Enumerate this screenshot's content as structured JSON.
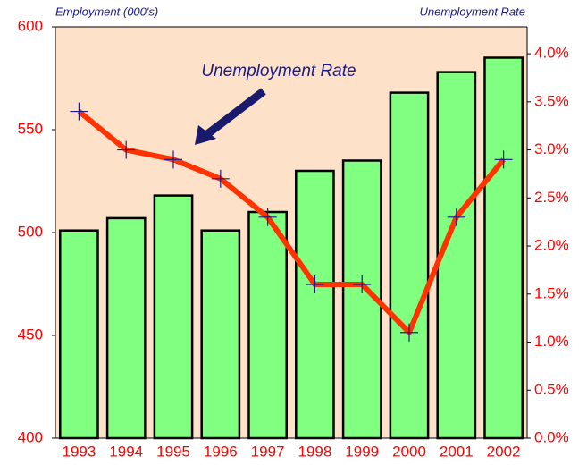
{
  "chart_data": {
    "type": "bar-line",
    "y_label": "Employment (000's)",
    "y2_label": "Unemployment Rate",
    "annotation": "Unemployment Rate",
    "categories": [
      "1993",
      "1994",
      "1995",
      "1996",
      "1997",
      "1998",
      "1999",
      "2000",
      "2001",
      "2002"
    ],
    "series": [
      {
        "type": "bar",
        "color": "#80ff80",
        "values": [
          501,
          507,
          518,
          501,
          510,
          530,
          535,
          568,
          578,
          585
        ]
      },
      {
        "type": "line",
        "axis": "y2",
        "color": "#ff3300",
        "marker_color": "#1a1a8c",
        "values": [
          3.4,
          3.0,
          2.9,
          2.7,
          2.3,
          1.6,
          1.6,
          1.1,
          2.3,
          2.9
        ]
      }
    ],
    "ylim": [
      400,
      600
    ],
    "yticks": [
      400,
      450,
      500,
      550,
      600
    ],
    "y2lim": [
      0,
      4.28
    ],
    "y2ticks": [
      {
        "value": 0,
        "label": "0.0%"
      },
      {
        "value": 0.5,
        "label": "0.5%"
      },
      {
        "value": 1,
        "label": "1.0%"
      },
      {
        "value": 1.5,
        "label": "1.5%"
      },
      {
        "value": 2,
        "label": "2.0%"
      },
      {
        "value": 2.5,
        "label": "2.5%"
      },
      {
        "value": 3,
        "label": "3.0%"
      },
      {
        "value": 3.5,
        "label": "3.5%"
      },
      {
        "value": 4,
        "label": "4.0%"
      }
    ],
    "background": "#fde2c9"
  }
}
